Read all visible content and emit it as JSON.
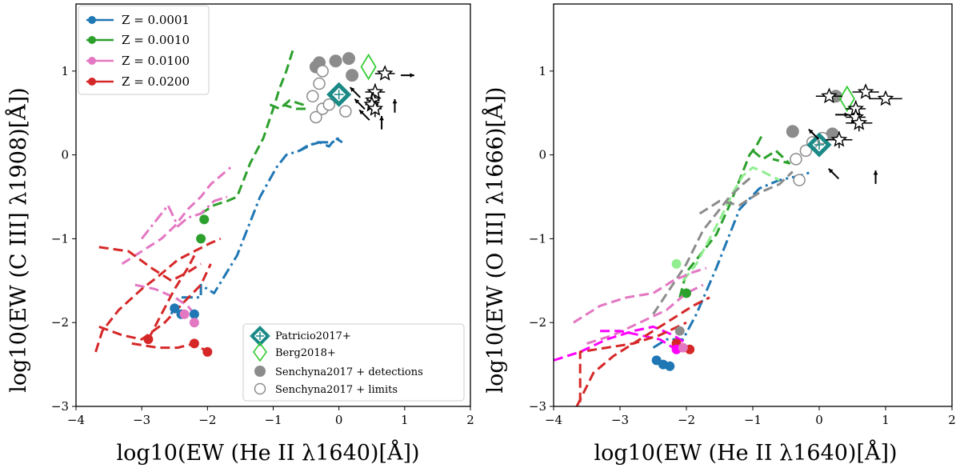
{
  "colors": {
    "blue": "#1f77b4",
    "green": "#2ca02c",
    "pink": "#e377c2",
    "red": "#d62728",
    "teal": "#1b8a87",
    "lime": "#33cc33",
    "gray": "#8c8c8c",
    "lightgreen": "#90ee90",
    "magenta": "#ff00ff"
  },
  "chart_data": [
    {
      "type": "line",
      "xlabel": "log10(EW (He II λ1640)[Å])",
      "ylabel": "log10(EW (C III] λ1908)[Å])",
      "xlim": [
        -4,
        2
      ],
      "ylim": [
        -3,
        1.8
      ],
      "xticks": [
        "-4",
        "-3",
        "-2",
        "-1",
        "0",
        "1",
        "2"
      ],
      "yticks": [
        "-3",
        "-2",
        "-1",
        "0",
        "1"
      ],
      "legend_top": [
        {
          "label": "Z = 0.0001",
          "color": "#1f77b4"
        },
        {
          "label": "Z = 0.0010",
          "color": "#2ca02c"
        },
        {
          "label": "Z = 0.0100",
          "color": "#e377c2"
        },
        {
          "label": "Z = 0.0200",
          "color": "#d62728"
        }
      ],
      "legend_bottom": [
        {
          "label": "Patricio2017+",
          "marker": "diamond-cross"
        },
        {
          "label": "Berg2018+",
          "marker": "open-diamond"
        },
        {
          "label": "Senchyna2017 +  detections",
          "marker": "filled-circle"
        },
        {
          "label": "Senchyna2017 +  limits",
          "marker": "open-circle"
        }
      ],
      "series": [
        {
          "name": "Z = 0.0001",
          "color": "#1f77b4",
          "dash": "dashdot",
          "x": [
            -2.55,
            -2.45,
            -2.1,
            -2.1,
            -1.9,
            -1.55,
            -1.2,
            -0.95,
            -0.8,
            -0.6,
            -0.35,
            -0.1,
            0.0
          ],
          "y": [
            -1.9,
            -1.7,
            -1.7,
            -1.55,
            -1.65,
            -1.2,
            -0.5,
            -0.15,
            0.0,
            0.05,
            0.15,
            0.15,
            0.2
          ]
        },
        {
          "name": "Z = 0.0001 (b)",
          "color": "#1f77b4",
          "dash": "dash",
          "x": [
            -0.6,
            -0.5,
            -0.3,
            -0.15,
            -0.05,
            0.05
          ],
          "y": [
            0.05,
            0.1,
            0.15,
            0.1,
            0.2,
            0.15
          ]
        },
        {
          "name": "Z = 0.0010",
          "color": "#2ca02c",
          "dash": "dash",
          "x": [
            -2.1,
            -1.9,
            -1.7,
            -1.55,
            -1.35,
            -1.15,
            -1.0,
            -0.9,
            -0.8,
            -0.7
          ],
          "y": [
            -0.7,
            -0.6,
            -0.55,
            -0.5,
            -0.1,
            0.2,
            0.55,
            0.8,
            1.0,
            1.25
          ]
        },
        {
          "name": "Z = 0.0010 (b)",
          "color": "#2ca02c",
          "dash": "dash",
          "x": [
            -1.05,
            -0.9,
            -0.75,
            -0.55,
            -0.5,
            -0.65,
            -0.85
          ],
          "y": [
            0.6,
            0.55,
            0.65,
            0.6,
            0.55,
            0.55,
            0.6
          ]
        },
        {
          "name": "Z = 0.0100",
          "color": "#e377c2",
          "dash": "dash",
          "x": [
            -3.3,
            -3.0,
            -2.7,
            -2.5,
            -2.3,
            -2.1,
            -1.95,
            -1.8,
            -1.65
          ],
          "y": [
            -1.3,
            -1.15,
            -1.0,
            -0.85,
            -0.65,
            -0.5,
            -0.35,
            -0.25,
            -0.15
          ]
        },
        {
          "name": "Z = 0.0100 (b)",
          "color": "#e377c2",
          "dash": "dashdot",
          "x": [
            -3.0,
            -2.8,
            -2.6,
            -2.45,
            -2.3,
            -2.1,
            -1.9,
            -1.7
          ],
          "y": [
            -1.0,
            -0.8,
            -0.6,
            -0.85,
            -0.75,
            -0.7,
            -0.55,
            -0.5
          ]
        },
        {
          "name": "Z = 0.0100 (c)",
          "color": "#e377c2",
          "dash": "dash",
          "x": [
            -3.1,
            -2.8,
            -2.5,
            -2.3,
            -2.2
          ],
          "y": [
            -1.55,
            -1.6,
            -1.7,
            -1.8,
            -1.9
          ]
        },
        {
          "name": "Z = 0.0200",
          "color": "#d62728",
          "dash": "dash",
          "x": [
            -3.7,
            -3.6,
            -3.35,
            -3.0,
            -2.75,
            -2.45,
            -2.2,
            -1.95,
            -1.8
          ],
          "y": [
            -2.35,
            -2.1,
            -1.85,
            -1.6,
            -1.45,
            -1.25,
            -1.15,
            -1.05,
            -1.0
          ]
        },
        {
          "name": "Z = 0.0200 (b)",
          "color": "#d62728",
          "dash": "dash",
          "x": [
            -3.65,
            -3.3,
            -3.0,
            -2.65,
            -2.35,
            -2.1,
            -1.95
          ],
          "y": [
            -2.05,
            -2.15,
            -2.2,
            -2.0,
            -1.75,
            -1.55,
            -1.3
          ]
        },
        {
          "name": "Z = 0.0200 (c)",
          "color": "#d62728",
          "dash": "dash",
          "x": [
            -3.65,
            -3.2,
            -2.85,
            -2.55,
            -2.3,
            -2.1
          ],
          "y": [
            -1.1,
            -1.15,
            -1.35,
            -1.5,
            -1.4,
            -1.3
          ]
        },
        {
          "name": "Z = 0.0200 (d)",
          "color": "#d62728",
          "dash": "dash",
          "x": [
            -2.9,
            -2.7,
            -2.5,
            -2.3,
            -2.2
          ],
          "y": [
            -2.2,
            -1.9,
            -1.6,
            -1.35,
            -1.2
          ]
        },
        {
          "name": "Z = 0.0200 (e)",
          "color": "#d62728",
          "dash": "dash",
          "x": [
            -3.15,
            -2.75,
            -2.45,
            -2.2,
            -2.0
          ],
          "y": [
            -2.25,
            -2.3,
            -2.3,
            -2.25,
            -2.35
          ]
        }
      ],
      "endpoints": [
        {
          "color": "#1f77b4",
          "x": -2.2,
          "y": -1.9
        },
        {
          "color": "#1f77b4",
          "x": -2.4,
          "y": -1.9
        },
        {
          "color": "#1f77b4",
          "x": -2.5,
          "y": -1.83
        },
        {
          "color": "#2ca02c",
          "x": -2.1,
          "y": -1.0
        },
        {
          "color": "#2ca02c",
          "x": -2.05,
          "y": -0.77
        },
        {
          "color": "#e377c2",
          "x": -2.2,
          "y": -2.0
        },
        {
          "color": "#e377c2",
          "x": -2.35,
          "y": -1.9
        },
        {
          "color": "#d62728",
          "x": -2.0,
          "y": -2.35
        },
        {
          "color": "#d62728",
          "x": -2.2,
          "y": -2.25
        },
        {
          "color": "#d62728",
          "x": -2.9,
          "y": -2.2
        }
      ],
      "senchyna_detections": [
        {
          "x": -0.35,
          "y": 1.05
        },
        {
          "x": -0.3,
          "y": 1.1
        },
        {
          "x": -0.05,
          "y": 1.12
        },
        {
          "x": 0.15,
          "y": 1.15
        },
        {
          "x": 0.2,
          "y": 0.95
        }
      ],
      "senchyna_limits": [
        {
          "x": -0.25,
          "y": 1.0
        },
        {
          "x": -0.4,
          "y": 0.7
        },
        {
          "x": -0.35,
          "y": 0.45
        },
        {
          "x": -0.25,
          "y": 0.55
        },
        {
          "x": -0.15,
          "y": 0.6
        },
        {
          "x": 0.1,
          "y": 0.52
        },
        {
          "x": -0.3,
          "y": 0.85
        }
      ],
      "patricio": [
        {
          "x": 0.0,
          "y": 0.72
        }
      ],
      "berg": [
        {
          "x": 0.45,
          "y": 1.05
        }
      ],
      "stars": [
        {
          "x": 0.7,
          "y": 0.97,
          "xerr": 0.15,
          "yerr": 0.0
        },
        {
          "x": 0.55,
          "y": 0.75,
          "xerr": 0.15,
          "yerr": 0.1
        },
        {
          "x": 0.52,
          "y": 0.65,
          "xerr": 0.1,
          "yerr": 0.1
        },
        {
          "x": 0.5,
          "y": 0.6,
          "xerr": 0.1,
          "yerr": 0.08
        },
        {
          "x": 0.55,
          "y": 0.55,
          "xerr": 0.1,
          "yerr": 0.1
        }
      ],
      "arrows": [
        {
          "x": 1.0,
          "y": 0.95,
          "dir": "right"
        },
        {
          "x": 0.85,
          "y": 0.55,
          "dir": "up"
        },
        {
          "x": 0.65,
          "y": 0.35,
          "dir": "up"
        },
        {
          "x": 0.28,
          "y": 0.72,
          "dir": "up-left"
        },
        {
          "x": 0.42,
          "y": 0.45,
          "dir": "up-left"
        },
        {
          "x": 0.35,
          "y": 0.58,
          "dir": "up-left"
        }
      ]
    },
    {
      "type": "line",
      "xlabel": "log10(EW (He II λ1640)[Å])",
      "ylabel": "log10(EW (O III] λ1666)[Å])",
      "xlim": [
        -4,
        2
      ],
      "ylim": [
        -3,
        1.8
      ],
      "xticks": [
        "-4",
        "-3",
        "-2",
        "-1",
        "0",
        "1",
        "2"
      ],
      "yticks": [
        "-3",
        "-2",
        "-1",
        "0",
        "1"
      ],
      "series": [
        {
          "name": "blue",
          "color": "#1f77b4",
          "dash": "dashdot",
          "x": [
            -2.5,
            -2.3,
            -2.05,
            -1.95,
            -1.85,
            -1.55,
            -1.2,
            -0.9,
            -0.6,
            -0.3,
            -0.1
          ],
          "y": [
            -2.3,
            -2.2,
            -2.2,
            -2.05,
            -1.9,
            -1.35,
            -0.65,
            -0.4,
            -0.3,
            -0.25,
            -0.2
          ]
        },
        {
          "name": "green",
          "color": "#2ca02c",
          "dash": "dash",
          "x": [
            -2.1,
            -2.0,
            -1.8,
            -1.55,
            -1.35,
            -1.2,
            -1.05,
            -0.95,
            -0.85
          ],
          "y": [
            -1.7,
            -1.4,
            -1.2,
            -0.95,
            -0.6,
            -0.3,
            0.0,
            0.1,
            0.25
          ]
        },
        {
          "name": "green b",
          "color": "#2ca02c",
          "dash": "dash",
          "x": [
            -1.0,
            -0.85,
            -0.65,
            -0.45,
            -0.7
          ],
          "y": [
            0.05,
            -0.05,
            0.05,
            -0.1,
            -0.05
          ]
        },
        {
          "name": "lightgreen",
          "color": "#90ee90",
          "dash": "dash",
          "x": [
            -2.05,
            -1.85,
            -1.65,
            -1.45,
            -1.3,
            -1.15,
            -1.0,
            -0.85,
            -0.6
          ],
          "y": [
            -1.5,
            -1.3,
            -1.0,
            -0.7,
            -0.45,
            -0.25,
            -0.15,
            -0.2,
            -0.3
          ]
        },
        {
          "name": "gray",
          "color": "#8c8c8c",
          "dash": "dash",
          "x": [
            -2.5,
            -2.25,
            -2.0,
            -1.75,
            -1.55,
            -1.35,
            -1.15,
            -1.0
          ],
          "y": [
            -1.9,
            -1.6,
            -1.3,
            -0.9,
            -0.7,
            -0.5,
            -0.35,
            -0.25
          ]
        },
        {
          "name": "gray b",
          "color": "#8c8c8c",
          "dash": "dash",
          "x": [
            -1.8,
            -1.5,
            -1.2,
            -0.9,
            -0.6,
            -0.4
          ],
          "y": [
            -0.7,
            -0.55,
            -0.6,
            -0.45,
            -0.35,
            -0.2
          ]
        },
        {
          "name": "pink",
          "color": "#e377c2",
          "dash": "dash",
          "x": [
            -3.7,
            -3.3,
            -2.9,
            -2.5,
            -2.2,
            -1.9,
            -1.7
          ],
          "y": [
            -2.0,
            -1.8,
            -1.7,
            -1.65,
            -1.5,
            -1.4,
            -1.35
          ]
        },
        {
          "name": "pink b",
          "color": "#e377c2",
          "dash": "dash",
          "x": [
            -3.5,
            -3.1,
            -2.7,
            -2.3,
            -2.0,
            -1.75
          ],
          "y": [
            -2.25,
            -2.15,
            -2.0,
            -1.85,
            -1.65,
            -1.55
          ]
        },
        {
          "name": "magenta",
          "color": "#ff00ff",
          "dash": "dash",
          "x": [
            -4.0,
            -3.6,
            -3.2,
            -2.8,
            -2.5,
            -2.2,
            -2.0
          ],
          "y": [
            -2.45,
            -2.35,
            -2.2,
            -2.1,
            -2.05,
            -2.15,
            -2.25
          ]
        },
        {
          "name": "magenta b",
          "color": "#ff00ff",
          "dash": "dash",
          "x": [
            -3.3,
            -3.0,
            -2.7,
            -2.4,
            -2.2
          ],
          "y": [
            -2.1,
            -2.1,
            -2.15,
            -2.2,
            -2.3
          ]
        },
        {
          "name": "red",
          "color": "#d62728",
          "dash": "dash",
          "x": [
            -3.65,
            -3.4,
            -3.1,
            -2.8,
            -2.5,
            -2.2,
            -1.9,
            -1.65
          ],
          "y": [
            -3.0,
            -2.6,
            -2.4,
            -2.25,
            -2.1,
            -1.95,
            -1.8,
            -1.7
          ]
        },
        {
          "name": "red b",
          "color": "#d62728",
          "dash": "dash",
          "x": [
            -3.6,
            -3.6,
            -3.2,
            -2.8,
            -2.4,
            -2.0
          ],
          "y": [
            -2.95,
            -2.35,
            -2.3,
            -2.25,
            -2.15,
            -2.0
          ]
        }
      ],
      "endpoints": [
        {
          "color": "#1f77b4",
          "x": -2.25,
          "y": -2.52
        },
        {
          "color": "#1f77b4",
          "x": -2.35,
          "y": -2.5
        },
        {
          "color": "#1f77b4",
          "x": -2.45,
          "y": -2.45
        },
        {
          "color": "#2ca02c",
          "x": -2.0,
          "y": -1.65
        },
        {
          "color": "#d62728",
          "x": -1.95,
          "y": -2.32
        },
        {
          "color": "#d62728",
          "x": -2.15,
          "y": -2.25
        },
        {
          "color": "#ff00ff",
          "x": -2.15,
          "y": -2.32
        },
        {
          "color": "#e377c2",
          "x": -2.05,
          "y": -2.3
        },
        {
          "color": "#8c8c8c",
          "x": -2.1,
          "y": -2.1
        },
        {
          "color": "#90ee90",
          "x": -2.15,
          "y": -1.3
        }
      ],
      "senchyna_detections": [
        {
          "x": -0.4,
          "y": 0.28
        },
        {
          "x": 0.2,
          "y": 0.25
        },
        {
          "x": 0.25,
          "y": 0.7
        }
      ],
      "senchyna_limits": [
        {
          "x": -0.35,
          "y": -0.05
        },
        {
          "x": -0.2,
          "y": 0.05
        },
        {
          "x": -0.1,
          "y": 0.15
        },
        {
          "x": -0.3,
          "y": -0.3
        },
        {
          "x": 0.05,
          "y": 0.2
        }
      ],
      "patricio": [
        {
          "x": 0.0,
          "y": 0.12
        }
      ],
      "berg": [
        {
          "x": 0.42,
          "y": 0.67
        }
      ],
      "stars": [
        {
          "x": 0.15,
          "y": 0.7,
          "xerr": 0.2,
          "yerr": 0.0
        },
        {
          "x": 0.7,
          "y": 0.75,
          "xerr": 0.2,
          "yerr": 0.05
        },
        {
          "x": 1.0,
          "y": 0.67,
          "xerr": 0.25,
          "yerr": 0.0
        },
        {
          "x": 0.55,
          "y": 0.55,
          "xerr": 0.15,
          "yerr": 0.1
        },
        {
          "x": 0.55,
          "y": 0.45,
          "xerr": 0.15,
          "yerr": 0.1
        },
        {
          "x": 0.6,
          "y": 0.38,
          "xerr": 0.2,
          "yerr": 0.1
        },
        {
          "x": 0.3,
          "y": 0.18,
          "xerr": 0.2,
          "yerr": 0.1
        }
      ],
      "arrows": [
        {
          "x": 0.85,
          "y": -0.3,
          "dir": "up"
        },
        {
          "x": 0.25,
          "y": -0.25,
          "dir": "up-left"
        },
        {
          "x": -0.05,
          "y": 0.22,
          "dir": "up-left"
        },
        {
          "x": 0.3,
          "y": 0.48,
          "dir": "right"
        }
      ]
    }
  ]
}
